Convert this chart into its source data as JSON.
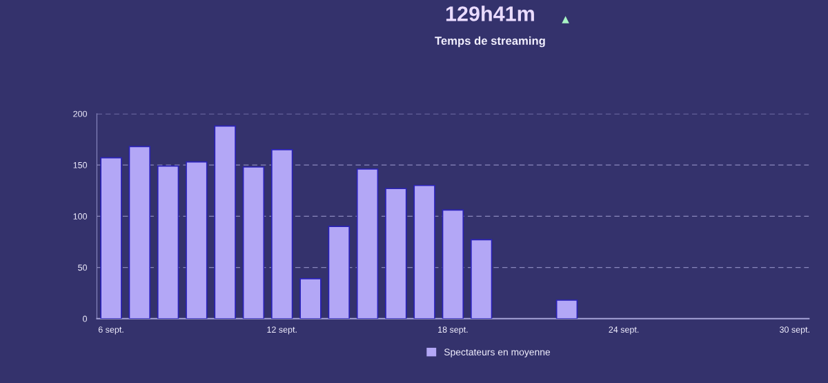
{
  "chart_data": {
    "type": "bar",
    "title": "129h41m",
    "subtitle": "Temps de streaming",
    "categories": [
      "6 sept.",
      null,
      null,
      null,
      null,
      null,
      "12 sept.",
      null,
      null,
      null,
      null,
      null,
      "18 sept.",
      null,
      null,
      null,
      null,
      null,
      "24 sept.",
      null,
      null,
      null,
      null,
      null,
      "30 sept."
    ],
    "series": [
      {
        "name": "Spectateurs en moyenne",
        "color": "#b3a7f6",
        "values": [
          157,
          168,
          149,
          153,
          188,
          148,
          165,
          39,
          90,
          146,
          127,
          130,
          106,
          77,
          null,
          null,
          18,
          null,
          null,
          null,
          null,
          null,
          null,
          null,
          null
        ]
      }
    ],
    "ylim": [
      0,
      200
    ],
    "yticks": [
      0,
      50,
      100,
      150,
      200
    ],
    "grid": "y",
    "legend": "bottom"
  }
}
